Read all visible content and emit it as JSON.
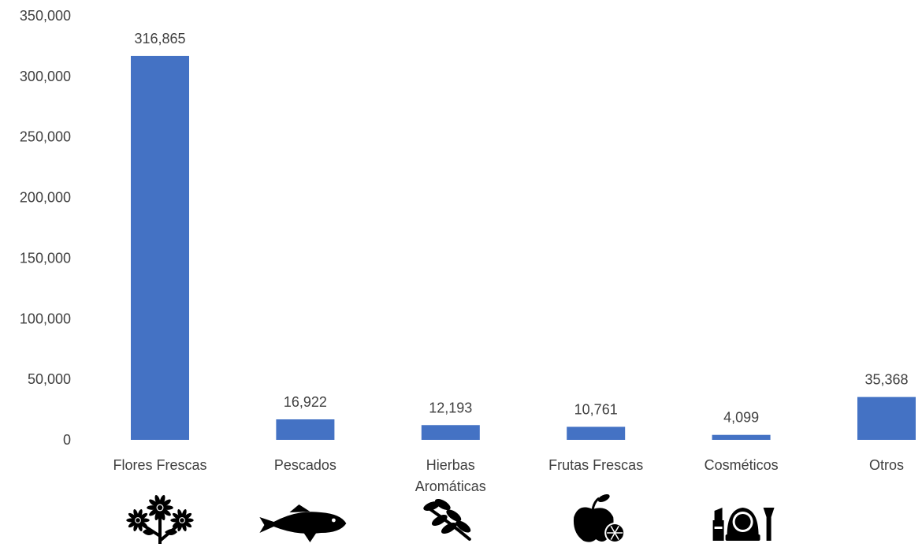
{
  "chart_data": {
    "type": "bar",
    "categories": [
      [
        "Flores Frescas"
      ],
      [
        "Pescados"
      ],
      [
        "Hierbas",
        "Aromáticas"
      ],
      [
        "Frutas Frescas"
      ],
      [
        "Cosméticos"
      ],
      [
        "Otros"
      ]
    ],
    "values": [
      316865,
      16922,
      12193,
      10761,
      4099,
      35368
    ],
    "value_labels": [
      "316,865",
      "16,922",
      "12,193",
      "10,761",
      "4,099",
      "35,368"
    ],
    "ylim": [
      0,
      350000
    ],
    "yticks": [
      0,
      50000,
      100000,
      150000,
      200000,
      250000,
      300000,
      350000
    ],
    "ytick_labels": [
      "0",
      "50,000",
      "100,000",
      "150,000",
      "200,000",
      "250,000",
      "300,000",
      "350,000"
    ],
    "category_icons": [
      "flowers-icon",
      "fish-icon",
      "herb-branch-icon",
      "fruit-icon",
      "cosmetics-icon",
      ""
    ],
    "grid": false,
    "legend": "none",
    "title": "",
    "xlabel": "",
    "ylabel": ""
  },
  "colors": {
    "bar": "#4472C4",
    "text": "#404040",
    "icon": "#000000"
  }
}
